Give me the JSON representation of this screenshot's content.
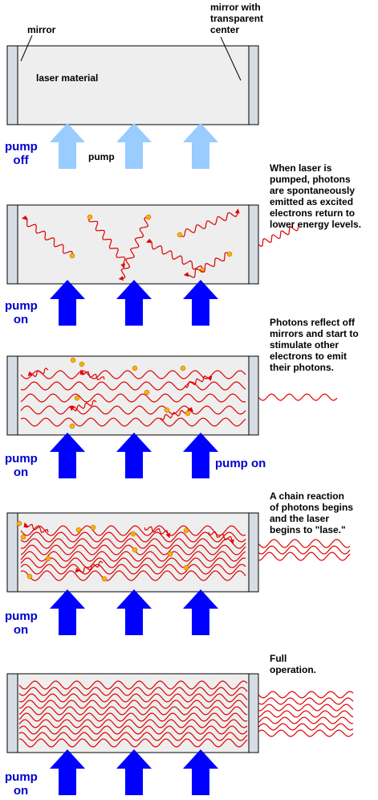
{
  "labels": {
    "mirror": "mirror",
    "mirror_transparent": "mirror with\ntransparent\ncenter",
    "laser_material": "laser material",
    "pump": "pump"
  },
  "stages": [
    {
      "pump_state": "pump\noff",
      "pump_color": "#99ccff",
      "caption": "",
      "side_pump": ""
    },
    {
      "pump_state": "pump\non",
      "pump_color": "#0000ff",
      "caption": "When laser is\npumped, photons\nare spontaneously\nemitted as excited\nelectrons return to\nlower energy levels.",
      "side_pump": ""
    },
    {
      "pump_state": "pump\non",
      "pump_color": "#0000ff",
      "caption": "Photons reflect off\nmirrors and start to\nstimulate other\nelectrons to emit\ntheir photons.",
      "side_pump": "pump on"
    },
    {
      "pump_state": "pump\non",
      "pump_color": "#0000ff",
      "caption": "A chain reaction\nof photons begins\nand the laser\nbegins to \"lase.\"",
      "side_pump": ""
    },
    {
      "pump_state": "pump\non",
      "pump_color": "#0000ff",
      "caption": "Full\noperation.",
      "side_pump": ""
    }
  ],
  "colors": {
    "tube": "#eeeeee",
    "mirror": "#d6dde4",
    "photon": "#e00000",
    "electron": "#ffb000"
  }
}
